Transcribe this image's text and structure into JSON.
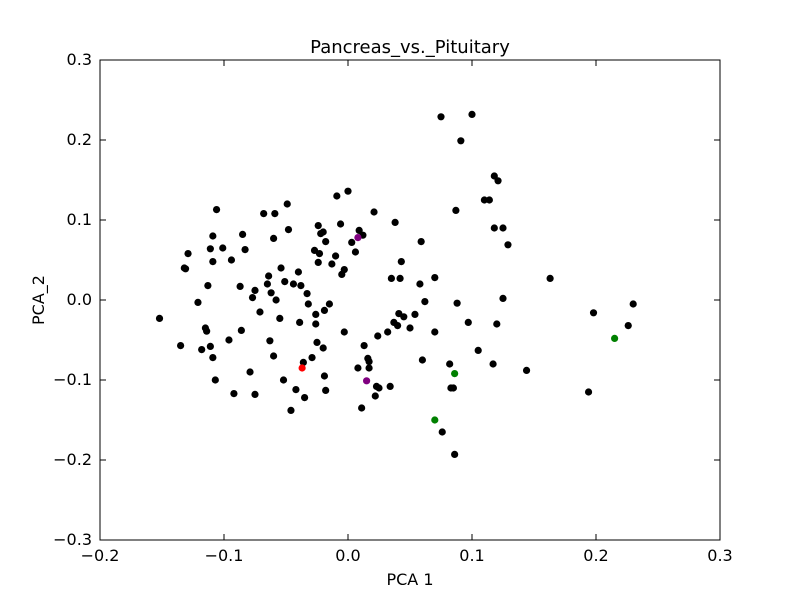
{
  "chart_data": {
    "type": "scatter",
    "title": "Pancreas_vs._Pituitary",
    "xlabel": "PCA 1",
    "ylabel": "PCA_2",
    "xlim": [
      -0.2,
      0.3
    ],
    "ylim": [
      -0.3,
      0.3
    ],
    "x_ticks": [
      -0.2,
      -0.1,
      0.0,
      0.1,
      0.2,
      0.3
    ],
    "x_tick_labels": [
      "−0.2",
      "−0.1",
      "0.0",
      "0.1",
      "0.2",
      "0.3"
    ],
    "y_ticks": [
      -0.3,
      -0.2,
      -0.1,
      0.0,
      0.1,
      0.2,
      0.3
    ],
    "y_tick_labels": [
      "−0.3",
      "−0.2",
      "−0.1",
      "0.0",
      "0.1",
      "0.2",
      "0.3"
    ],
    "grid": false,
    "legend": "none",
    "series": [
      {
        "color": "#000000",
        "points": [
          [
            -0.152,
            -0.023
          ],
          [
            -0.135,
            -0.057
          ],
          [
            -0.132,
            0.04
          ],
          [
            -0.131,
            0.039
          ],
          [
            -0.129,
            0.058
          ],
          [
            -0.121,
            -0.003
          ],
          [
            -0.118,
            -0.062
          ],
          [
            -0.115,
            -0.035
          ],
          [
            -0.114,
            -0.039
          ],
          [
            -0.113,
            0.018
          ],
          [
            -0.111,
            -0.058
          ],
          [
            -0.111,
            0.064
          ],
          [
            -0.109,
            -0.072
          ],
          [
            -0.109,
            0.048
          ],
          [
            -0.109,
            0.08
          ],
          [
            -0.107,
            -0.1
          ],
          [
            -0.106,
            0.113
          ],
          [
            -0.101,
            0.065
          ],
          [
            -0.096,
            -0.05
          ],
          [
            -0.094,
            0.05
          ],
          [
            -0.092,
            -0.117
          ],
          [
            -0.087,
            0.017
          ],
          [
            -0.086,
            -0.038
          ],
          [
            -0.085,
            0.082
          ],
          [
            -0.083,
            0.063
          ],
          [
            -0.079,
            -0.09
          ],
          [
            -0.077,
            0.003
          ],
          [
            -0.075,
            0.012
          ],
          [
            -0.075,
            -0.118
          ],
          [
            -0.071,
            -0.015
          ],
          [
            -0.068,
            0.108
          ],
          [
            -0.065,
            0.02
          ],
          [
            -0.064,
            0.03
          ],
          [
            -0.063,
            -0.051
          ],
          [
            -0.062,
            0.009
          ],
          [
            -0.06,
            -0.07
          ],
          [
            -0.06,
            0.077
          ],
          [
            -0.059,
            0.108
          ],
          [
            -0.058,
            0.0
          ],
          [
            -0.055,
            -0.023
          ],
          [
            -0.054,
            0.04
          ],
          [
            -0.052,
            -0.1
          ],
          [
            -0.051,
            0.023
          ],
          [
            -0.049,
            0.12
          ],
          [
            -0.048,
            0.088
          ],
          [
            -0.046,
            -0.138
          ],
          [
            -0.044,
            0.02
          ],
          [
            -0.042,
            -0.112
          ],
          [
            -0.04,
            0.035
          ],
          [
            -0.039,
            -0.028
          ],
          [
            -0.038,
            0.018
          ],
          [
            -0.036,
            -0.078
          ],
          [
            -0.035,
            -0.122
          ],
          [
            -0.033,
            0.008
          ],
          [
            -0.032,
            -0.005
          ],
          [
            -0.029,
            -0.072
          ],
          [
            -0.027,
            0.062
          ],
          [
            -0.026,
            -0.018
          ],
          [
            -0.026,
            -0.03
          ],
          [
            -0.025,
            -0.053
          ],
          [
            -0.024,
            0.093
          ],
          [
            -0.024,
            0.047
          ],
          [
            -0.023,
            0.058
          ],
          [
            -0.022,
            0.083
          ],
          [
            -0.02,
            -0.06
          ],
          [
            -0.02,
            0.085
          ],
          [
            -0.019,
            -0.095
          ],
          [
            -0.019,
            -0.013
          ],
          [
            -0.018,
            0.073
          ],
          [
            -0.018,
            -0.113
          ],
          [
            -0.015,
            -0.005
          ],
          [
            -0.013,
            0.045
          ],
          [
            -0.01,
            0.055
          ],
          [
            -0.009,
            0.13
          ],
          [
            -0.006,
            0.095
          ],
          [
            -0.005,
            0.032
          ],
          [
            -0.003,
            0.038
          ],
          [
            -0.003,
            -0.04
          ],
          [
            0.0,
            0.136
          ],
          [
            0.003,
            0.072
          ],
          [
            0.006,
            0.06
          ],
          [
            0.008,
            -0.085
          ],
          [
            0.009,
            0.087
          ],
          [
            0.011,
            -0.135
          ],
          [
            0.012,
            0.081
          ],
          [
            0.013,
            -0.057
          ],
          [
            0.016,
            -0.073
          ],
          [
            0.017,
            -0.085
          ],
          [
            0.017,
            -0.077
          ],
          [
            0.021,
            0.11
          ],
          [
            0.022,
            -0.12
          ],
          [
            0.023,
            -0.108
          ],
          [
            0.024,
            -0.045
          ],
          [
            0.025,
            -0.11
          ],
          [
            0.032,
            -0.04
          ],
          [
            0.034,
            -0.108
          ],
          [
            0.035,
            0.027
          ],
          [
            0.037,
            -0.028
          ],
          [
            0.038,
            0.097
          ],
          [
            0.04,
            -0.032
          ],
          [
            0.041,
            -0.017
          ],
          [
            0.042,
            0.027
          ],
          [
            0.043,
            0.048
          ],
          [
            0.045,
            -0.021
          ],
          [
            0.05,
            -0.035
          ],
          [
            0.054,
            -0.018
          ],
          [
            0.058,
            0.02
          ],
          [
            0.059,
            0.073
          ],
          [
            0.06,
            -0.075
          ],
          [
            0.062,
            -0.002
          ],
          [
            0.07,
            0.028
          ],
          [
            0.07,
            -0.04
          ],
          [
            0.075,
            0.229
          ],
          [
            0.076,
            -0.165
          ],
          [
            0.082,
            -0.08
          ],
          [
            0.083,
            -0.11
          ],
          [
            0.085,
            -0.11
          ],
          [
            0.086,
            -0.193
          ],
          [
            0.087,
            0.112
          ],
          [
            0.088,
            -0.004
          ],
          [
            0.091,
            0.199
          ],
          [
            0.097,
            -0.028
          ],
          [
            0.1,
            0.232
          ],
          [
            0.105,
            -0.063
          ],
          [
            0.11,
            0.125
          ],
          [
            0.114,
            0.125
          ],
          [
            0.117,
            -0.08
          ],
          [
            0.118,
            0.09
          ],
          [
            0.118,
            0.155
          ],
          [
            0.12,
            -0.03
          ],
          [
            0.121,
            0.149
          ],
          [
            0.125,
            0.002
          ],
          [
            0.125,
            0.09
          ],
          [
            0.129,
            0.069
          ],
          [
            0.144,
            -0.088
          ],
          [
            0.163,
            0.027
          ],
          [
            0.194,
            -0.115
          ],
          [
            0.198,
            -0.016
          ],
          [
            0.226,
            -0.032
          ],
          [
            0.23,
            -0.005
          ]
        ]
      },
      {
        "color": "#ff0000",
        "points": [
          [
            -0.037,
            -0.085
          ]
        ]
      },
      {
        "color": "#800080",
        "points": [
          [
            0.008,
            0.078
          ],
          [
            0.015,
            -0.101
          ]
        ]
      },
      {
        "color": "#008000",
        "points": [
          [
            0.07,
            -0.15
          ],
          [
            0.086,
            -0.092
          ],
          [
            0.215,
            -0.048
          ]
        ]
      }
    ]
  }
}
